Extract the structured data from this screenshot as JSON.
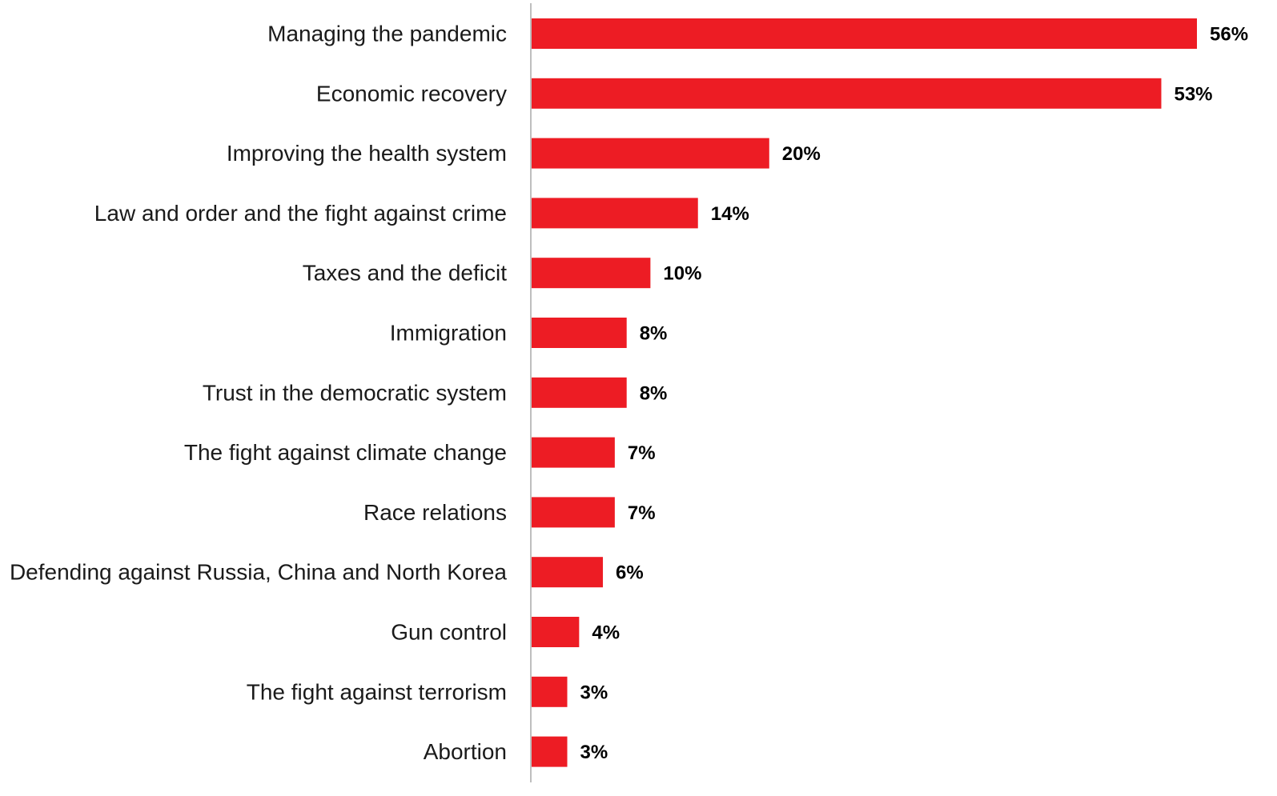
{
  "chart_data": {
    "type": "bar",
    "orientation": "horizontal",
    "categories": [
      "Managing the pandemic",
      "Economic recovery",
      "Improving the health system",
      "Law and order and the fight against crime",
      "Taxes and the deficit",
      "Immigration",
      "Trust in the democratic system",
      "The fight against climate change",
      "Race relations",
      "Defending against Russia, China and North Korea",
      "Gun control",
      "The fight against terrorism",
      "Abortion"
    ],
    "values": [
      56,
      53,
      20,
      14,
      10,
      8,
      8,
      7,
      7,
      6,
      4,
      3,
      3
    ],
    "value_labels": [
      "56%",
      "53%",
      "20%",
      "14%",
      "10%",
      "8%",
      "8%",
      "7%",
      "7%",
      "6%",
      "4%",
      "3%",
      "3%"
    ],
    "xlim": [
      0,
      56
    ],
    "title": "",
    "xlabel": "",
    "ylabel": "",
    "grid": false,
    "legend": "none",
    "colors": {
      "bar": "#ED1C24",
      "axis": "#BFBFBF",
      "value_text": "#000000",
      "label_text": "#1a1a1a"
    }
  }
}
